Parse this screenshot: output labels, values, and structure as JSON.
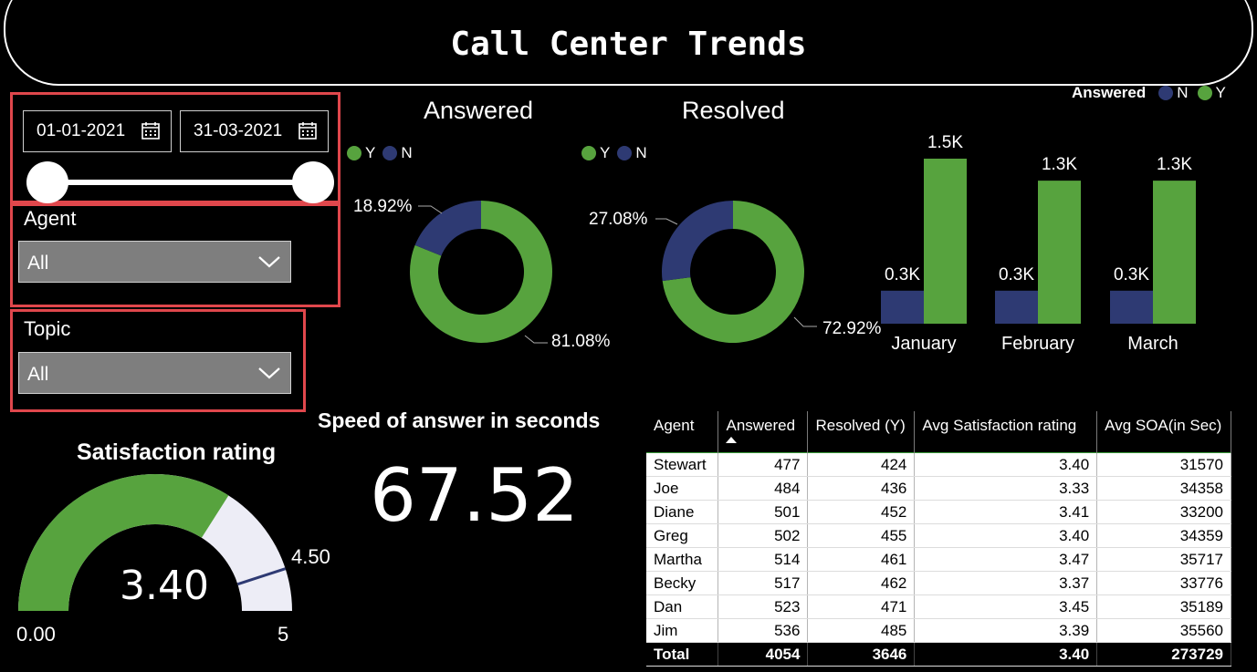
{
  "header": {
    "title": "Call Center Trends"
  },
  "date_slicer": {
    "start_date": "01-01-2021",
    "end_date": "31-03-2021",
    "range_start_fraction": 0,
    "range_end_fraction": 1
  },
  "agent_slicer": {
    "label": "Agent",
    "value": "All"
  },
  "topic_slicer": {
    "label": "Topic",
    "value": "All"
  },
  "colors": {
    "green": "#57a33e",
    "navy": "#2e3a73",
    "red_border": "#e0474c",
    "gauge_bg": "#ededf6"
  },
  "answered_donut": {
    "title": "Answered",
    "legend": [
      {
        "label": "Y",
        "color": "#57a33e"
      },
      {
        "label": "N",
        "color": "#2e3a73"
      }
    ],
    "y_pct_label": "81.08%",
    "n_pct_label": "18.92%"
  },
  "resolved_donut": {
    "title": "Resolved",
    "legend": [
      {
        "label": "Y",
        "color": "#57a33e"
      },
      {
        "label": "N",
        "color": "#2e3a73"
      }
    ],
    "y_pct_label": "72.92%",
    "n_pct_label": "27.08%"
  },
  "monthly_chart": {
    "legend_title": "Answered",
    "legend": [
      {
        "label": "N",
        "color": "#2e3a73"
      },
      {
        "label": "Y",
        "color": "#57a33e"
      }
    ]
  },
  "satisfaction": {
    "title": "Satisfaction rating",
    "value_label": "3.40",
    "min_label": "0.00",
    "max_label": "5",
    "target_label": "4.50"
  },
  "speed": {
    "title": "Speed of answer in seconds",
    "value": "67.52"
  },
  "table": {
    "columns": [
      "Agent",
      "Answered",
      "Resolved (Y)",
      "Avg Satisfaction rating",
      "Avg SOA(in Sec)"
    ],
    "rows": [
      [
        "Stewart",
        "477",
        "424",
        "3.40",
        "31570"
      ],
      [
        "Joe",
        "484",
        "436",
        "3.33",
        "34358"
      ],
      [
        "Diane",
        "501",
        "452",
        "3.41",
        "33200"
      ],
      [
        "Greg",
        "502",
        "455",
        "3.40",
        "34359"
      ],
      [
        "Martha",
        "514",
        "461",
        "3.47",
        "35717"
      ],
      [
        "Becky",
        "517",
        "462",
        "3.37",
        "33776"
      ],
      [
        "Dan",
        "523",
        "471",
        "3.45",
        "35189"
      ],
      [
        "Jim",
        "536",
        "485",
        "3.39",
        "35560"
      ]
    ],
    "total": [
      "Total",
      "4054",
      "3646",
      "3.40",
      "273729"
    ]
  },
  "chart_data": [
    {
      "type": "pie",
      "title": "Answered",
      "categories": [
        "Y",
        "N"
      ],
      "values": [
        81.08,
        18.92
      ],
      "labels": [
        "81.08%",
        "18.92%"
      ],
      "colors": [
        "#57a33e",
        "#2e3a73"
      ],
      "legend": "top-left"
    },
    {
      "type": "pie",
      "title": "Resolved",
      "categories": [
        "Y",
        "N"
      ],
      "values": [
        72.92,
        27.08
      ],
      "labels": [
        "72.92%",
        "27.08%"
      ],
      "colors": [
        "#57a33e",
        "#2e3a73"
      ],
      "legend": "top-left"
    },
    {
      "type": "bar",
      "categories": [
        "January",
        "February",
        "March"
      ],
      "series": [
        {
          "name": "N",
          "values": [
            0.3,
            0.3,
            0.3
          ],
          "labels": [
            "0.3K",
            "0.3K",
            "0.3K"
          ],
          "color": "#2e3a73"
        },
        {
          "name": "Y",
          "values": [
            1.5,
            1.3,
            1.3
          ],
          "labels": [
            "1.5K",
            "1.3K",
            "1.3K"
          ],
          "color": "#57a33e"
        }
      ],
      "legend_title": "Answered",
      "legend": "top-right",
      "grid": false
    },
    {
      "type": "gauge",
      "title": "Satisfaction rating",
      "value": 3.4,
      "min": 0,
      "max": 5,
      "target": 4.5
    }
  ]
}
